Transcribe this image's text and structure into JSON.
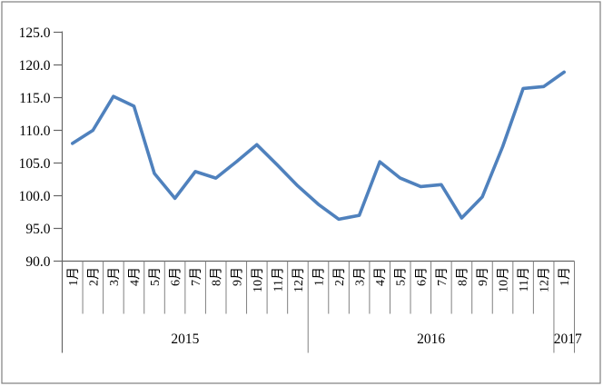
{
  "window": {
    "background": "#ffffff",
    "border_color": "#7f7f7f"
  },
  "chart_data": {
    "type": "line",
    "title": "",
    "legend": false,
    "grid": false,
    "line_color": "#4F81BD",
    "axis_color": "#666666",
    "cell_line_color": "#808080",
    "ylim": [
      90,
      125
    ],
    "ytick_step": 5,
    "ytick_labels": [
      "125.0",
      "120.0",
      "115.0",
      "110.0",
      "105.0",
      "100.0",
      "95.0",
      "90.0"
    ],
    "x_axis": {
      "months": [
        "1月",
        "2月",
        "3月",
        "4月",
        "5月",
        "6月",
        "7月",
        "8月",
        "9月",
        "10月",
        "11月",
        "12月",
        "1月",
        "2月",
        "3月",
        "4月",
        "5月",
        "6月",
        "7月",
        "8月",
        "9月",
        "10月",
        "11月",
        "12月",
        "1月"
      ],
      "years": [
        {
          "label": "2015",
          "span": 12
        },
        {
          "label": "2016",
          "span": 12
        },
        {
          "label": "2017",
          "span": 1
        }
      ]
    },
    "values": [
      108.0,
      110.0,
      115.2,
      113.7,
      103.4,
      99.6,
      103.7,
      102.7,
      105.2,
      107.8,
      104.7,
      101.5,
      98.7,
      96.4,
      97.0,
      105.2,
      102.7,
      101.4,
      101.7,
      96.6,
      99.8,
      107.5,
      116.4,
      116.7,
      118.9
    ]
  }
}
